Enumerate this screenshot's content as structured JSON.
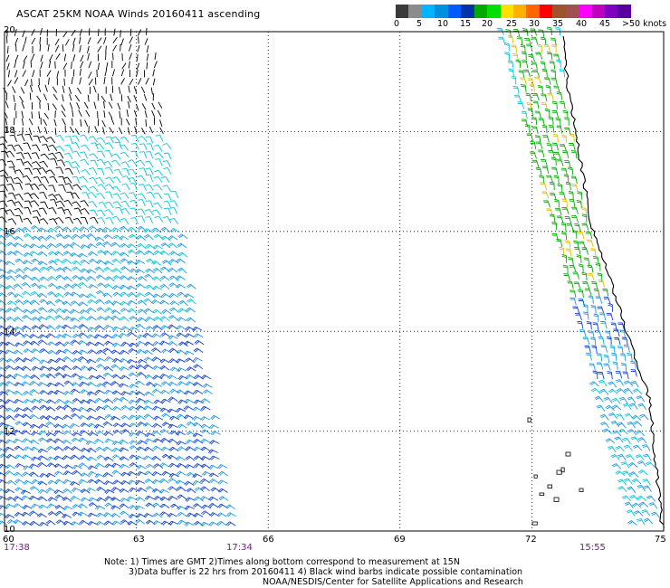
{
  "title": "ASCAT 25KM NOAA Winds 20160411 ascending",
  "legend": {
    "colors": [
      "#3a3a3a",
      "#8c8c8c",
      "#00b4ff",
      "#0090e0",
      "#005aff",
      "#0033aa",
      "#00aa00",
      "#00e000",
      "#ffe000",
      "#ffb000",
      "#ff6600",
      "#ff0000",
      "#a0522d",
      "#a05050",
      "#ff00ff",
      "#c000c0",
      "#8000c0",
      "#5a00a0"
    ],
    "labels": [
      "0",
      "5",
      "10",
      "15",
      "20",
      "25",
      "30",
      "35",
      "40",
      "45",
      ">50 knots"
    ]
  },
  "y_axis": {
    "labels": [
      "20",
      "18",
      "16",
      "14",
      "12",
      "10"
    ]
  },
  "x_axis": {
    "labels": [
      "60",
      "63",
      "66",
      "69",
      "72",
      "75"
    ]
  },
  "times": [
    "17:38",
    "17:34",
    "15:55"
  ],
  "notes": [
    "Note: 1) Times are GMT 2)Times along bottom correspond to measurement at 15N",
    "3)Data buffer is 22 hrs from 20160411 4) Black wind barbs indicate possible contamination",
    "NOAA/NESDIS/Center for Satellite Applications and Research"
  ],
  "map": {
    "lon_range": [
      60,
      75
    ],
    "lat_range": [
      10,
      20
    ],
    "barb_colors": {
      "contaminated": "#000000",
      "light": "#00c8d8",
      "mid": "#1a9ae0",
      "blue": "#1040d0",
      "green": "#00aa00",
      "yellow": "#e0c000"
    }
  }
}
